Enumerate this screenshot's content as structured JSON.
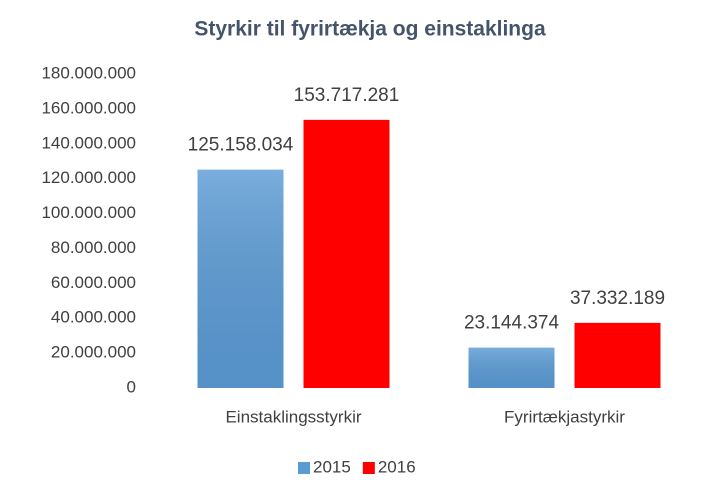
{
  "chart_data": {
    "type": "bar",
    "title": "Styrkir til fyrirtækja og einstaklinga",
    "categories": [
      "Einstaklingsstyrkir",
      "Fyrirtækjastyrkir"
    ],
    "series": [
      {
        "name": "2015",
        "color": "#5b9bd5",
        "values": [
          125158034,
          23144374
        ],
        "value_labels": [
          "125.158.034",
          "23.144.374"
        ]
      },
      {
        "name": "2016",
        "color": "#ff0000",
        "values": [
          153717281,
          37332189
        ],
        "value_labels": [
          "153.717.281",
          "37.332.189"
        ]
      }
    ],
    "ylim": [
      0,
      180000000
    ],
    "yticks": [
      0,
      {
        "value": 20000000,
        "label": "20.000.000"
      },
      {
        "value": 40000000,
        "label": "40.000.000"
      },
      {
        "value": 60000000,
        "label": "60.000.000"
      },
      {
        "value": 80000000,
        "label": "80.000.000"
      },
      {
        "value": 100000000,
        "label": "100.000.000"
      },
      {
        "value": 120000000,
        "label": "120.000.000"
      },
      {
        "value": 140000000,
        "label": "140.000.000"
      },
      {
        "value": 160000000,
        "label": "160.000.000"
      },
      {
        "value": 180000000,
        "label": "180.000.000"
      }
    ],
    "grid": false,
    "legend": "bottom"
  }
}
